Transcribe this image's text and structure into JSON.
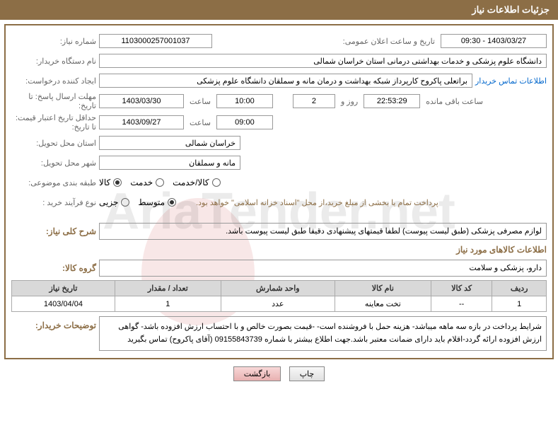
{
  "header": {
    "title": "جزئیات اطلاعات نیاز"
  },
  "fields": {
    "need_no_label": "شماره نیاز:",
    "need_no": "1103000257001037",
    "announce_label": "تاریخ و ساعت اعلان عمومی:",
    "announce": "1403/03/27 - 09:30",
    "buyer_org_label": "نام دستگاه خریدار:",
    "buyer_org": "دانشگاه علوم پزشکی و خدمات بهداشتی درمانی استان خراسان شمالی",
    "requester_label": "ایجاد کننده درخواست:",
    "requester": "براتعلی پاکروح کارپرداز شبکه بهداشت و درمان مانه و سملقان دانشگاه علوم پزشکی",
    "contact_link": "اطلاعات تماس خریدار",
    "deadline_label": "مهلت ارسال پاسخ: تا تاریخ:",
    "deadline_date": "1403/03/30",
    "time_word": "ساعت",
    "deadline_time": "10:00",
    "days_remaining": "2",
    "days_word": "روز و",
    "countdown": "22:53:29",
    "remaining_word": "ساعت باقی مانده",
    "validity_label": "حداقل تاریخ اعتبار قیمت: تا تاریخ:",
    "validity_date": "1403/09/27",
    "validity_time": "09:00",
    "province_label": "استان محل تحویل:",
    "province": "خراسان شمالی",
    "city_label": "شهر محل تحویل:",
    "city": "مانه و سملقان",
    "category_label": "طبقه بندی موضوعی:",
    "process_label": "نوع فرآیند خرید :",
    "payment_note": "پرداخت تمام یا بخشی از مبلغ خرید،از محل \"اسناد خزانه اسلامی\" خواهد بود."
  },
  "radios": {
    "category": [
      {
        "label": "کالا",
        "checked": true
      },
      {
        "label": "خدمت",
        "checked": false
      },
      {
        "label": "کالا/خدمت",
        "checked": false
      }
    ],
    "process": [
      {
        "label": "جزیی",
        "checked": false
      },
      {
        "label": "متوسط",
        "checked": true
      }
    ]
  },
  "summary": {
    "label": "شرح کلی نیاز:",
    "text": "لوازم مصرفی پزشکی (طبق لیست پیوست) لطفا قیمتهای پیشنهادی دقیقا طبق لیست پیوست باشد."
  },
  "goods": {
    "section_title": "اطلاعات کالاهای مورد نیاز",
    "group_label": "گروه کالا:",
    "group": "دارو، پزشکی و سلامت"
  },
  "table": {
    "headers": [
      "ردیف",
      "کد کالا",
      "نام کالا",
      "واحد شمارش",
      "تعداد / مقدار",
      "تاریخ نیاز"
    ],
    "rows": [
      [
        "1",
        "--",
        "تخت معاینه",
        "عدد",
        "1",
        "1403/04/04"
      ]
    ]
  },
  "buyer_notes": {
    "label": "توضیحات خریدار:",
    "text": "شرایط پرداخت در بازه سه ماهه میباشد- هزینه حمل با فروشنده است- -قیمت بصورت خالص و با احتساب ارزش افزوده باشد- گواهی ارزش افزوده ارائه گردد-اقلام باید دارای ضمانت معتبر باشد.جهت اطلاع بیشتر با شماره 09155843739 (آقای پاکروح) تماس بگیرید"
  },
  "buttons": {
    "print": "چاپ",
    "back": "بازگشت"
  },
  "colors": {
    "header_bg": "#8c6e46",
    "header_text": "#ffffff",
    "border": "#8c6e46",
    "label_text": "#666666",
    "link": "#0066cc",
    "note": "#8c6e46",
    "th_bg": "#d9d9d9"
  }
}
